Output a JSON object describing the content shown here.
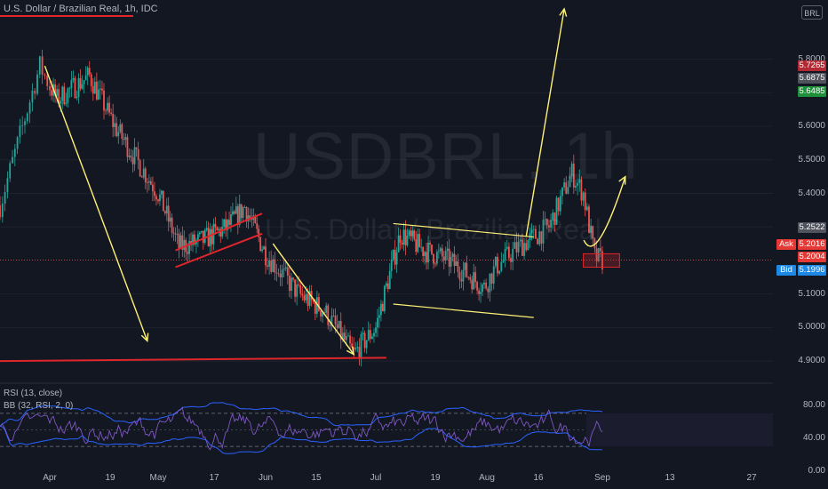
{
  "header": {
    "title": "U.S. Dollar / Brazilian Real, 1h, IDC",
    "currency_badge": "BRL",
    "watermark_symbol": "USDBRL, 1h",
    "watermark_description": "U.S. Dollar / Brazilian Real"
  },
  "indicators": {
    "rsi_label": "RSI (13, close)",
    "bb_label": "BB (32, RSI, 2, 0)"
  },
  "colors": {
    "background": "#131722",
    "bull_candle": "#26a69a",
    "bear_candle": "#ef5350",
    "drawing_yellow": "#fff176",
    "drawing_red": "#e0262b",
    "rsi_line": "#7e57c2",
    "bb_band": "#2962ff"
  },
  "price_tags": {
    "red": "5.7265",
    "gray_top": "5.6875",
    "green": "5.6485",
    "gray_mid": "5.2522",
    "ask_label": "Ask",
    "ask_value": "5.2016",
    "current_value": "5.2004",
    "bid_label": "Bid",
    "bid_value": "5.1996"
  },
  "chart_data": {
    "type": "candlestick",
    "symbol": "USDBRL",
    "timeframe": "1h",
    "source": "IDC",
    "y_axis": {
      "range": [
        4.85,
        5.95
      ],
      "ticks": [
        "5.8000",
        "5.7000",
        "5.6000",
        "5.5000",
        "5.4000",
        "5.3000",
        "5.1000",
        "5.0000",
        "4.9000"
      ]
    },
    "x_axis": {
      "ticks": [
        "Apr",
        "19",
        "May",
        "17",
        "Jun",
        "15",
        "Jul",
        "19",
        "Aug",
        "16",
        "Sep",
        "13",
        "27"
      ]
    },
    "price_path": [
      [
        "Mar 25",
        5.52
      ],
      [
        "Mar 30",
        5.78
      ],
      [
        "Apr 1",
        5.72
      ],
      [
        "Apr 3",
        5.68
      ],
      [
        "Apr 12",
        5.75
      ],
      [
        "Apr 19",
        5.6
      ],
      [
        "May 1",
        5.4
      ],
      [
        "May 7",
        5.24
      ],
      [
        "May 14",
        5.26
      ],
      [
        "May 21",
        5.3
      ],
      [
        "May 26",
        5.36
      ],
      [
        "Jun 1",
        5.22
      ],
      [
        "Jun 10",
        5.1
      ],
      [
        "Jun 17",
        5.05
      ],
      [
        "Jun 25",
        4.92
      ],
      [
        "Jul 1",
        5.0
      ],
      [
        "Jul 6",
        5.2
      ],
      [
        "Jul 8",
        5.28
      ],
      [
        "Jul 15",
        5.23
      ],
      [
        "Jul 22",
        5.2
      ],
      [
        "Aug 1",
        5.12
      ],
      [
        "Aug 4",
        5.18
      ],
      [
        "Aug 10",
        5.24
      ],
      [
        "Aug 18",
        5.3
      ],
      [
        "Aug 24",
        5.46
      ],
      [
        "Aug 27",
        5.4
      ],
      [
        "Aug 30",
        5.21
      ],
      [
        "Sep 1",
        5.2
      ]
    ],
    "rsi": {
      "name": "RSI (13, close)",
      "levels": [
        70,
        30
      ],
      "ticks": [
        "80.00",
        "40.00",
        "0.00"
      ],
      "range": [
        0,
        100
      ]
    },
    "bollinger_on_rsi": {
      "name": "BB (32, RSI, 2, 0)"
    },
    "drawings": [
      {
        "type": "arrow",
        "color": "yellow",
        "from": [
          "Mar 31",
          5.78
        ],
        "to": [
          "Apr 28",
          4.96
        ]
      },
      {
        "type": "arrow",
        "color": "yellow",
        "from": [
          "Jun 3",
          5.25
        ],
        "to": [
          "Jun 25",
          4.92
        ]
      },
      {
        "type": "line",
        "color": "red",
        "from": [
          "Mar 22",
          4.9
        ],
        "to": [
          "Jul 4",
          4.91
        ]
      },
      {
        "type": "parallel_channel",
        "color": "red",
        "line1": [
          [
            "May 6",
            5.23
          ],
          [
            "May 31",
            5.34
          ]
        ],
        "line2": [
          [
            "May 6",
            5.18
          ],
          [
            "May 31",
            5.28
          ]
        ]
      },
      {
        "type": "parallel_channel",
        "color": "yellow",
        "line1": [
          [
            "Jul 6",
            5.31
          ],
          [
            "Aug 14",
            5.27
          ]
        ],
        "line2": [
          [
            "Jul 6",
            5.07
          ],
          [
            "Aug 14",
            5.03
          ]
        ]
      },
      {
        "type": "arrow",
        "color": "yellow",
        "from": [
          "Aug 12",
          5.27
        ],
        "to": [
          "Aug 22",
          5.95
        ]
      },
      {
        "type": "arrow",
        "color": "yellow",
        "from": [
          "Aug 29",
          5.25
        ],
        "to": [
          "Sep 5",
          5.45
        ]
      },
      {
        "type": "rectangle",
        "color": "red",
        "from": [
          "Aug 27",
          5.22
        ],
        "to": [
          "Sep 4",
          5.18
        ]
      }
    ]
  }
}
